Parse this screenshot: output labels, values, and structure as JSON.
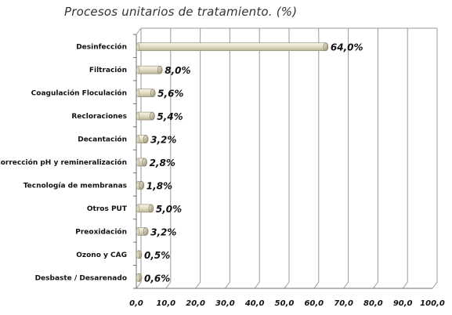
{
  "chart_data": {
    "type": "bar",
    "orientation": "horizontal",
    "title": "Procesos unitarios de tratamiento. (%)",
    "categories": [
      "Desinfección",
      "Filtración",
      "Coagulación Floculación",
      "Recloraciones",
      "Decantación",
      "Corrección pH y remineralización",
      "Tecnología de membranas",
      "Otros PUT",
      "Preoxidación",
      "Ozono y CAG",
      "Desbaste / Desarenado"
    ],
    "values": [
      64.0,
      8.0,
      5.6,
      5.4,
      3.2,
      2.8,
      1.8,
      5.0,
      3.2,
      0.5,
      0.6
    ],
    "data_labels": [
      "64,0%",
      "8,0%",
      "5,6%",
      "5,4%",
      "3,2%",
      "2,8%",
      "1,8%",
      "5,0%",
      "3,2%",
      "0,5%",
      "0,6%"
    ],
    "xlim": [
      0,
      100
    ],
    "x_ticks": [
      0,
      10,
      20,
      30,
      40,
      50,
      60,
      70,
      80,
      90,
      100
    ],
    "x_tick_labels": [
      "0,0",
      "10,0",
      "20,0",
      "30,0",
      "40,0",
      "50,0",
      "60,0",
      "70,0",
      "80,0",
      "90,0",
      "100,0"
    ],
    "grid": true,
    "legend": false,
    "bar_color": "#e8e2cc",
    "bar_shade_color": "#9a9278"
  }
}
